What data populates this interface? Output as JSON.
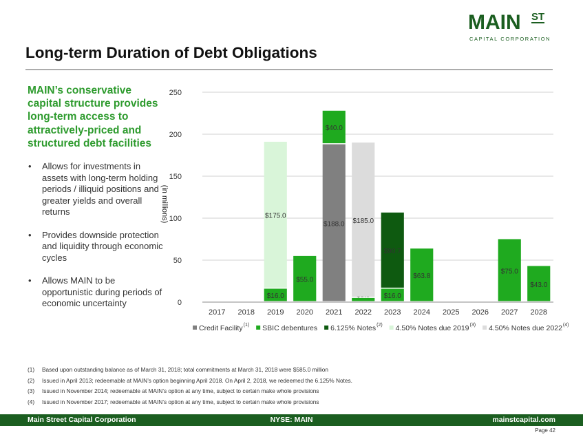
{
  "logo": {
    "main": "MAIN",
    "st": "ST",
    "sub": "CAPITAL CORPORATION"
  },
  "title": "Long-term Duration of Debt Obligations",
  "headline": "MAIN’s conservative capital structure provides long-term access to attractively-priced and structured debt facilities",
  "bullets": [
    "Allows for investments in assets with long-term holding periods / illiquid positions and greater yields and overall returns",
    "Provides downside protection and liquidity through economic cycles",
    "Allows MAIN to be opportunistic during periods of economic uncertainty"
  ],
  "bullet_char": "•",
  "chart_data": {
    "type": "bar",
    "stacked": true,
    "ylabel": "(in millions)",
    "ylim": [
      0,
      250
    ],
    "yticks": [
      0,
      50,
      100,
      150,
      200,
      250
    ],
    "grid": true,
    "categories": [
      "2017",
      "2018",
      "2019",
      "2020",
      "2021",
      "2022",
      "2023",
      "2024",
      "2025",
      "2026",
      "2027",
      "2028"
    ],
    "series": [
      {
        "name": "Credit Facility",
        "sup": "(1)",
        "color": "#808080",
        "values": [
          0,
          0,
          0,
          0,
          188.0,
          0,
          0,
          0,
          0,
          0,
          0,
          0
        ],
        "labels": [
          "",
          "",
          "",
          "",
          "$188.0",
          "",
          "",
          "",
          "",
          "",
          "",
          ""
        ]
      },
      {
        "name": "SBIC debentures",
        "sup": "",
        "color": "#1faa1f",
        "values": [
          0,
          0,
          16.0,
          55.0,
          40.0,
          5.0,
          16.0,
          63.8,
          0,
          0,
          75.0,
          43.0
        ],
        "labels": [
          "",
          "",
          "$16.0",
          "$55.0",
          "$40.0",
          "$5.0",
          "$16.0",
          "$63.8",
          "",
          "",
          "$75.0",
          "$43.0"
        ]
      },
      {
        "name": "6.125% Notes",
        "sup": "(2)",
        "color": "#0e5a10",
        "values": [
          0,
          0,
          0,
          0,
          0,
          0,
          90.7,
          0,
          0,
          0,
          0,
          0
        ],
        "labels": [
          "",
          "",
          "",
          "",
          "",
          "",
          "$90.7",
          "",
          "",
          "",
          "",
          ""
        ]
      },
      {
        "name": "4.50% Notes due 2019",
        "sup": "(3)",
        "color": "#d9f5d9",
        "values": [
          0,
          0,
          175.0,
          0,
          0,
          0,
          0,
          0,
          0,
          0,
          0,
          0
        ],
        "labels": [
          "",
          "",
          "$175.0",
          "",
          "",
          "",
          "",
          "",
          "",
          "",
          "",
          ""
        ]
      },
      {
        "name": "4.50% Notes due 2022",
        "sup": "(4)",
        "color": "#dcdcdc",
        "values": [
          0,
          0,
          0,
          0,
          0,
          185.0,
          0,
          0,
          0,
          0,
          0,
          0
        ],
        "labels": [
          "",
          "",
          "",
          "",
          "",
          "$185.0",
          "",
          "",
          "",
          "",
          "",
          ""
        ]
      }
    ]
  },
  "footnotes": [
    {
      "num": "(1)",
      "text": "Based upon outstanding balance as of March 31, 2018; total commitments at March 31, 2018 were $585.0 million"
    },
    {
      "num": "(2)",
      "text": "Issued in April 2013; redeemable at MAIN’s option beginning April 2018. On April 2, 2018, we redeemed the 6.125% Notes."
    },
    {
      "num": "(3)",
      "text": "Issued in November 2014; redeemable at MAIN’s option at any time, subject to certain make whole provisions"
    },
    {
      "num": "(4)",
      "text": "Issued in November 2017; redeemable at MAIN’s option at any time, subject to certain make whole provisions"
    }
  ],
  "footer": {
    "left": "Main Street Capital Corporation",
    "center": "NYSE: MAIN",
    "right": "mainstcapital.com"
  },
  "page": "Page  42",
  "colors": {
    "brand_green": "#1b5e20",
    "headline_green": "#2e9b2e"
  }
}
